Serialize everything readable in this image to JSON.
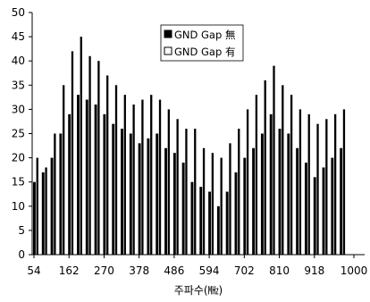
{
  "chart_data": {
    "type": "bar",
    "xlabel": "주파수(㎒)",
    "ylabel": "",
    "ylim": [
      0,
      50
    ],
    "yticks": [
      0,
      5,
      10,
      15,
      20,
      25,
      30,
      35,
      40,
      45,
      50
    ],
    "xtick_labels": [
      "54",
      "162",
      "270",
      "378",
      "486",
      "594",
      "702",
      "810",
      "918",
      "1000"
    ],
    "legend_position": "top-right",
    "grid": false,
    "colors": {
      "series_nogap": "#000000",
      "series_gap": "#000000",
      "gap_fill": "#ffffff"
    },
    "series": [
      {
        "name": "GND Gap 無",
        "values": [
          15,
          17,
          20,
          25,
          29,
          33,
          32,
          31,
          29,
          27,
          26,
          25,
          23,
          24,
          25,
          22,
          21,
          19,
          15,
          14,
          13,
          10,
          13,
          17,
          20,
          22,
          25,
          29,
          26,
          25,
          22,
          19,
          16,
          18,
          20,
          22
        ]
      },
      {
        "name": "GND Gap 有",
        "values": [
          20,
          18,
          25,
          35,
          42,
          45,
          41,
          40,
          37,
          35,
          33,
          31,
          32,
          33,
          32,
          30,
          28,
          26,
          26,
          22,
          21,
          20,
          23,
          26,
          30,
          33,
          36,
          39,
          35,
          33,
          30,
          29,
          27,
          28,
          29,
          30
        ]
      }
    ]
  }
}
